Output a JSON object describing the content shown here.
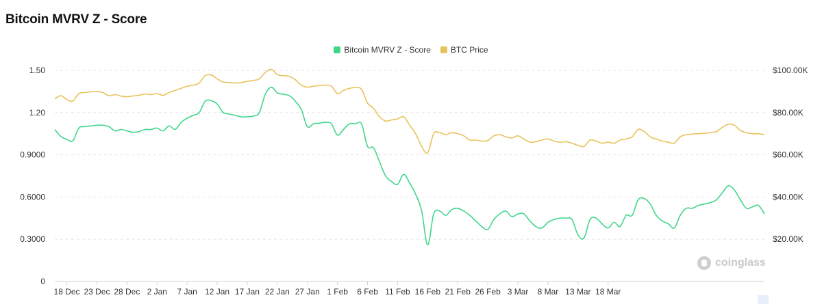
{
  "title": "Bitcoin MVRV Z - Score",
  "watermark": "coinglass",
  "colors": {
    "zscore": "#3fd68a",
    "price": "#e8c25a",
    "grid": "#e6e6e6"
  },
  "chart_data": {
    "type": "line",
    "title": "Bitcoin MVRV Z - Score",
    "legend_position": "top-center",
    "grid": true,
    "x_tick_labels": [
      "18 Dec",
      "23 Dec",
      "28 Dec",
      "2 Jan",
      "7 Jan",
      "12 Jan",
      "17 Jan",
      "22 Jan",
      "27 Jan",
      "1 Feb",
      "6 Feb",
      "11 Feb",
      "16 Feb",
      "21 Feb",
      "26 Feb",
      "3 Mar",
      "8 Mar",
      "13 Mar",
      "18 Mar"
    ],
    "y_left": {
      "ticks": [
        "0",
        "0.3000",
        "0.6000",
        "0.9000",
        "1.20",
        "1.50"
      ],
      "range": [
        0,
        1.5
      ]
    },
    "y_right": {
      "ticks": [
        "$20.00K",
        "$40.00K",
        "$60.00K",
        "$80.00K",
        "$100.00K"
      ],
      "range": [
        0,
        100000
      ]
    },
    "x_start": "16 Dec",
    "series": [
      {
        "name": "Bitcoin MVRV Z - Score",
        "axis": "left",
        "points": [
          [
            0,
            1.08
          ],
          [
            1,
            1.03
          ],
          [
            2,
            1.01
          ],
          [
            3,
            1.0
          ],
          [
            4,
            1.09
          ],
          [
            5,
            1.1
          ],
          [
            6,
            1.105
          ],
          [
            7,
            1.11
          ],
          [
            8,
            1.11
          ],
          [
            9,
            1.1
          ],
          [
            10,
            1.07
          ],
          [
            11,
            1.08
          ],
          [
            12,
            1.07
          ],
          [
            13,
            1.06
          ],
          [
            14,
            1.065
          ],
          [
            15,
            1.08
          ],
          [
            16,
            1.08
          ],
          [
            17,
            1.09
          ],
          [
            18,
            1.07
          ],
          [
            19,
            1.105
          ],
          [
            20,
            1.08
          ],
          [
            21,
            1.13
          ],
          [
            22,
            1.16
          ],
          [
            23,
            1.18
          ],
          [
            24,
            1.2
          ],
          [
            25,
            1.28
          ],
          [
            26,
            1.285
          ],
          [
            27,
            1.26
          ],
          [
            28,
            1.2
          ],
          [
            29,
            1.19
          ],
          [
            30,
            1.18
          ],
          [
            31,
            1.17
          ],
          [
            32,
            1.17
          ],
          [
            33,
            1.175
          ],
          [
            34,
            1.2
          ],
          [
            35,
            1.33
          ],
          [
            36,
            1.38
          ],
          [
            37,
            1.34
          ],
          [
            38,
            1.33
          ],
          [
            39,
            1.32
          ],
          [
            40,
            1.28
          ],
          [
            41,
            1.22
          ],
          [
            42,
            1.1
          ],
          [
            43,
            1.12
          ],
          [
            44,
            1.125
          ],
          [
            45,
            1.13
          ],
          [
            46,
            1.12
          ],
          [
            47,
            1.04
          ],
          [
            48,
            1.08
          ],
          [
            49,
            1.12
          ],
          [
            50,
            1.12
          ],
          [
            51,
            1.12
          ],
          [
            52,
            0.96
          ],
          [
            53,
            0.95
          ],
          [
            54,
            0.85
          ],
          [
            55,
            0.75
          ],
          [
            56,
            0.71
          ],
          [
            57,
            0.69
          ],
          [
            58,
            0.76
          ],
          [
            59,
            0.7
          ],
          [
            60,
            0.62
          ],
          [
            61,
            0.5
          ],
          [
            62,
            0.26
          ],
          [
            63,
            0.48
          ],
          [
            64,
            0.5
          ],
          [
            65,
            0.47
          ],
          [
            66,
            0.51
          ],
          [
            67,
            0.52
          ],
          [
            68,
            0.5
          ],
          [
            69,
            0.47
          ],
          [
            70,
            0.43
          ],
          [
            71,
            0.39
          ],
          [
            72,
            0.37
          ],
          [
            73,
            0.44
          ],
          [
            74,
            0.48
          ],
          [
            75,
            0.5
          ],
          [
            76,
            0.46
          ],
          [
            77,
            0.48
          ],
          [
            78,
            0.48
          ],
          [
            79,
            0.43
          ],
          [
            80,
            0.39
          ],
          [
            81,
            0.38
          ],
          [
            82,
            0.42
          ],
          [
            83,
            0.44
          ],
          [
            84,
            0.45
          ],
          [
            85,
            0.45
          ],
          [
            86,
            0.44
          ],
          [
            87,
            0.33
          ],
          [
            88,
            0.31
          ],
          [
            89,
            0.44
          ],
          [
            90,
            0.45
          ],
          [
            91,
            0.41
          ],
          [
            92,
            0.38
          ],
          [
            93,
            0.42
          ],
          [
            94,
            0.39
          ],
          [
            95,
            0.47
          ],
          [
            96,
            0.47
          ],
          [
            97,
            0.58
          ],
          [
            98,
            0.59
          ],
          [
            99,
            0.55
          ],
          [
            100,
            0.47
          ],
          [
            101,
            0.43
          ],
          [
            102,
            0.41
          ],
          [
            103,
            0.38
          ],
          [
            104,
            0.47
          ],
          [
            105,
            0.52
          ],
          [
            106,
            0.52
          ],
          [
            107,
            0.54
          ],
          [
            108,
            0.55
          ],
          [
            109,
            0.56
          ],
          [
            110,
            0.58
          ],
          [
            111,
            0.63
          ],
          [
            112,
            0.68
          ],
          [
            113,
            0.65
          ],
          [
            114,
            0.58
          ],
          [
            115,
            0.52
          ],
          [
            116,
            0.53
          ],
          [
            117,
            0.54
          ],
          [
            118,
            0.48
          ]
        ]
      },
      {
        "name": "BTC Price",
        "axis": "right",
        "points": [
          [
            0,
            86500
          ],
          [
            1,
            88000
          ],
          [
            2,
            86200
          ],
          [
            3,
            85500
          ],
          [
            4,
            89000
          ],
          [
            5,
            89500
          ],
          [
            6,
            89800
          ],
          [
            7,
            90000
          ],
          [
            8,
            89500
          ],
          [
            9,
            88000
          ],
          [
            10,
            88500
          ],
          [
            11,
            87800
          ],
          [
            12,
            87500
          ],
          [
            13,
            87900
          ],
          [
            14,
            88200
          ],
          [
            15,
            88800
          ],
          [
            16,
            88500
          ],
          [
            17,
            89000
          ],
          [
            18,
            88200
          ],
          [
            19,
            89500
          ],
          [
            20,
            90500
          ],
          [
            21,
            91500
          ],
          [
            22,
            92500
          ],
          [
            23,
            93000
          ],
          [
            24,
            94000
          ],
          [
            25,
            97500
          ],
          [
            26,
            97800
          ],
          [
            27,
            96000
          ],
          [
            28,
            94500
          ],
          [
            29,
            94200
          ],
          [
            30,
            94000
          ],
          [
            31,
            94200
          ],
          [
            32,
            94800
          ],
          [
            33,
            95200
          ],
          [
            34,
            96000
          ],
          [
            35,
            99000
          ],
          [
            36,
            100500
          ],
          [
            37,
            98000
          ],
          [
            38,
            97500
          ],
          [
            39,
            97200
          ],
          [
            40,
            95500
          ],
          [
            41,
            93000
          ],
          [
            42,
            92000
          ],
          [
            43,
            92500
          ],
          [
            44,
            92800
          ],
          [
            45,
            93000
          ],
          [
            46,
            92500
          ],
          [
            47,
            89000
          ],
          [
            48,
            90500
          ],
          [
            49,
            91500
          ],
          [
            50,
            91800
          ],
          [
            51,
            91000
          ],
          [
            52,
            84500
          ],
          [
            53,
            82000
          ],
          [
            54,
            78000
          ],
          [
            55,
            76000
          ],
          [
            56,
            76500
          ],
          [
            57,
            77000
          ],
          [
            58,
            78000
          ],
          [
            59,
            74000
          ],
          [
            60,
            70000
          ],
          [
            61,
            64000
          ],
          [
            62,
            61000
          ],
          [
            63,
            70000
          ],
          [
            64,
            70500
          ],
          [
            65,
            69500
          ],
          [
            66,
            70500
          ],
          [
            67,
            70000
          ],
          [
            68,
            69000
          ],
          [
            69,
            67000
          ],
          [
            70,
            67000
          ],
          [
            71,
            66500
          ],
          [
            72,
            66800
          ],
          [
            73,
            69000
          ],
          [
            74,
            69500
          ],
          [
            75,
            68500
          ],
          [
            76,
            68000
          ],
          [
            77,
            69000
          ],
          [
            78,
            67500
          ],
          [
            79,
            66000
          ],
          [
            80,
            66200
          ],
          [
            81,
            67000
          ],
          [
            82,
            67500
          ],
          [
            83,
            66500
          ],
          [
            84,
            66000
          ],
          [
            85,
            66200
          ],
          [
            86,
            65500
          ],
          [
            87,
            64500
          ],
          [
            88,
            64000
          ],
          [
            89,
            67000
          ],
          [
            90,
            66500
          ],
          [
            91,
            65500
          ],
          [
            92,
            66000
          ],
          [
            93,
            65500
          ],
          [
            94,
            67000
          ],
          [
            95,
            67500
          ],
          [
            96,
            68500
          ],
          [
            97,
            72000
          ],
          [
            98,
            71000
          ],
          [
            99,
            68500
          ],
          [
            100,
            67500
          ],
          [
            101,
            66500
          ],
          [
            102,
            66000
          ],
          [
            103,
            65500
          ],
          [
            104,
            68500
          ],
          [
            105,
            69500
          ],
          [
            106,
            69800
          ],
          [
            107,
            70000
          ],
          [
            108,
            70200
          ],
          [
            109,
            70500
          ],
          [
            110,
            71000
          ],
          [
            111,
            73000
          ],
          [
            112,
            74500
          ],
          [
            113,
            74000
          ],
          [
            114,
            71500
          ],
          [
            115,
            70500
          ],
          [
            116,
            70000
          ],
          [
            117,
            70000
          ],
          [
            118,
            69500
          ]
        ]
      }
    ]
  }
}
